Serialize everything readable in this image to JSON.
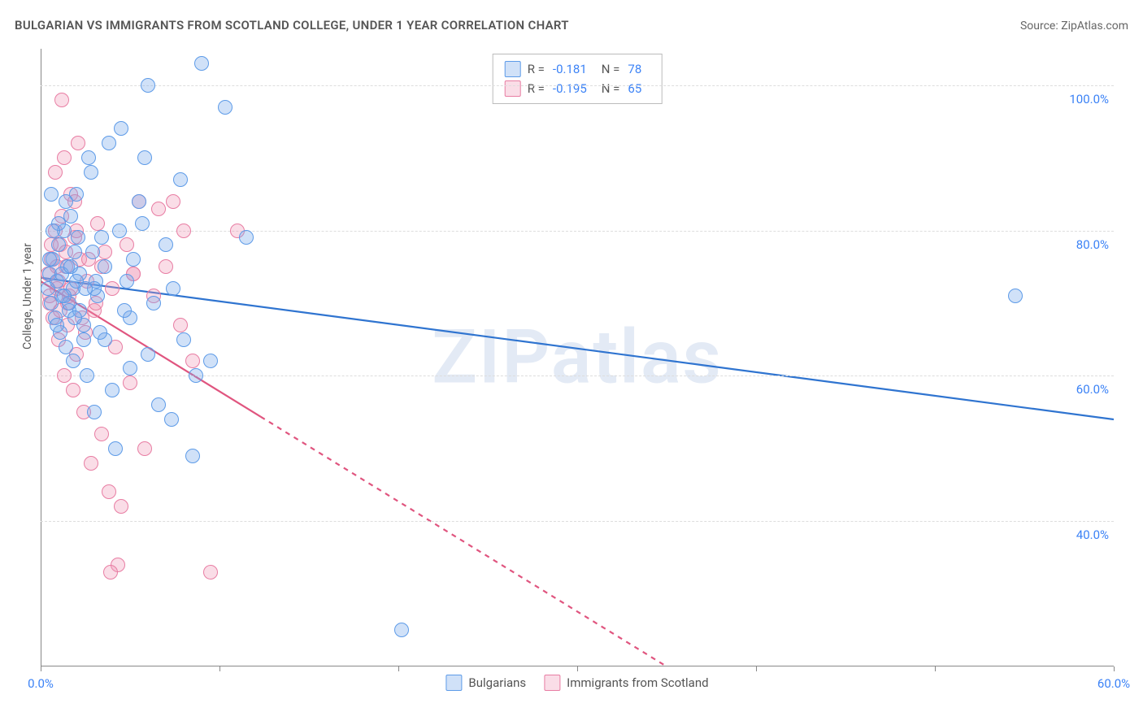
{
  "header": {
    "title": "BULGARIAN VS IMMIGRANTS FROM SCOTLAND COLLEGE, UNDER 1 YEAR CORRELATION CHART",
    "source_prefix": "Source: ",
    "source_name": "ZipAtlas.com"
  },
  "watermark": "ZIPatlas",
  "ylabel": "College, Under 1 year",
  "chart": {
    "type": "scatter",
    "xlim": [
      0,
      60.0
    ],
    "ylim": [
      20.0,
      105.0
    ],
    "xticks": [
      0.0,
      10.0,
      20.0,
      30.0,
      40.0,
      50.0,
      60.0
    ],
    "xtick_labels_shown": {
      "0": "0.0%",
      "60": "60.0%"
    },
    "yticks": [
      40.0,
      60.0,
      80.0,
      100.0
    ],
    "ytick_labels": {
      "40": "40.0%",
      "60": "60.0%",
      "80": "80.0%",
      "100": "100.0%"
    },
    "grid_color": "#dddddd",
    "axis_color": "#888888",
    "background": "#ffffff",
    "label_color": "#3b82f6",
    "text_color": "#555555",
    "marker_radius": 8,
    "marker_stroke_width": 1.5,
    "line_width": 2.2
  },
  "series": {
    "blue": {
      "name": "Bulgarians",
      "fill": "rgba(120,170,235,0.35)",
      "stroke": "#5d9be8",
      "line_stroke": "#2f74d0",
      "r_label": "R =",
      "r_value": "-0.181",
      "n_label": "N =",
      "n_value": "78",
      "trend": {
        "x1": 0,
        "y1": 73.5,
        "x2": 60,
        "y2": 54.0,
        "solid_until_x": 60
      },
      "points": [
        [
          0.4,
          72
        ],
        [
          0.5,
          74
        ],
        [
          0.6,
          70
        ],
        [
          0.7,
          76
        ],
        [
          0.8,
          68
        ],
        [
          0.9,
          73
        ],
        [
          1.0,
          78
        ],
        [
          1.1,
          66
        ],
        [
          1.2,
          71
        ],
        [
          1.3,
          80
        ],
        [
          1.4,
          64
        ],
        [
          1.5,
          75
        ],
        [
          1.6,
          69
        ],
        [
          1.7,
          82
        ],
        [
          1.8,
          62
        ],
        [
          1.9,
          77
        ],
        [
          2.0,
          85
        ],
        [
          2.2,
          74
        ],
        [
          2.4,
          67
        ],
        [
          2.6,
          60
        ],
        [
          2.8,
          88
        ],
        [
          3.0,
          55
        ],
        [
          3.2,
          71
        ],
        [
          3.4,
          79
        ],
        [
          3.6,
          65
        ],
        [
          3.8,
          92
        ],
        [
          4.0,
          58
        ],
        [
          4.2,
          50
        ],
        [
          4.5,
          94
        ],
        [
          4.8,
          73
        ],
        [
          5.0,
          68
        ],
        [
          5.2,
          76
        ],
        [
          5.5,
          84
        ],
        [
          5.8,
          90
        ],
        [
          6.0,
          63
        ],
        [
          6.3,
          70
        ],
        [
          6.6,
          56
        ],
        [
          7.0,
          78
        ],
        [
          7.4,
          72
        ],
        [
          7.8,
          87
        ],
        [
          8.0,
          65
        ],
        [
          8.5,
          49
        ],
        [
          9.0,
          103
        ],
        [
          9.5,
          62
        ],
        [
          10.3,
          97
        ],
        [
          6.0,
          100
        ],
        [
          5.7,
          81
        ],
        [
          11.5,
          79
        ],
        [
          8.7,
          60
        ],
        [
          7.3,
          54
        ],
        [
          3.1,
          73
        ],
        [
          2.7,
          90
        ],
        [
          1.4,
          84
        ],
        [
          1.0,
          81
        ],
        [
          0.6,
          85
        ],
        [
          2.2,
          69
        ],
        [
          4.4,
          80
        ],
        [
          5.0,
          61
        ],
        [
          3.6,
          75
        ],
        [
          1.8,
          72
        ],
        [
          0.9,
          67
        ],
        [
          2.0,
          73
        ],
        [
          2.9,
          77
        ],
        [
          20.2,
          25
        ],
        [
          54.5,
          71
        ],
        [
          1.2,
          74
        ],
        [
          1.6,
          70
        ],
        [
          2.4,
          65
        ],
        [
          3.0,
          72
        ],
        [
          0.7,
          80
        ],
        [
          1.9,
          68
        ],
        [
          0.5,
          76
        ],
        [
          1.3,
          71
        ],
        [
          2.1,
          79
        ],
        [
          4.7,
          69
        ],
        [
          3.3,
          66
        ],
        [
          1.7,
          75
        ],
        [
          2.5,
          72
        ]
      ]
    },
    "pink": {
      "name": "Immigrants from Scotland",
      "fill": "rgba(240,150,180,0.32)",
      "stroke": "#e87da3",
      "line_stroke": "#e0557f",
      "r_label": "R =",
      "r_value": "-0.195",
      "n_label": "N =",
      "n_value": "65",
      "trend": {
        "x1": 0,
        "y1": 73.0,
        "x2": 35,
        "y2": 20.0,
        "solid_until_x": 12.3
      },
      "points": [
        [
          0.4,
          74
        ],
        [
          0.5,
          70
        ],
        [
          0.6,
          76
        ],
        [
          0.7,
          68
        ],
        [
          0.8,
          80
        ],
        [
          0.9,
          72
        ],
        [
          1.0,
          65
        ],
        [
          1.1,
          78
        ],
        [
          1.2,
          82
        ],
        [
          1.3,
          60
        ],
        [
          1.4,
          75
        ],
        [
          1.5,
          67
        ],
        [
          1.6,
          71
        ],
        [
          1.7,
          85
        ],
        [
          1.8,
          58
        ],
        [
          1.9,
          79
        ],
        [
          2.0,
          63
        ],
        [
          2.2,
          76
        ],
        [
          2.4,
          55
        ],
        [
          2.6,
          73
        ],
        [
          2.8,
          48
        ],
        [
          3.0,
          69
        ],
        [
          3.2,
          81
        ],
        [
          3.4,
          52
        ],
        [
          3.6,
          77
        ],
        [
          3.8,
          44
        ],
        [
          4.0,
          72
        ],
        [
          4.2,
          64
        ],
        [
          4.5,
          42
        ],
        [
          4.8,
          78
        ],
        [
          5.0,
          59
        ],
        [
          5.2,
          74
        ],
        [
          5.5,
          84
        ],
        [
          5.8,
          50
        ],
        [
          1.2,
          98
        ],
        [
          6.3,
          71
        ],
        [
          6.6,
          83
        ],
        [
          7.0,
          75
        ],
        [
          7.4,
          84
        ],
        [
          7.8,
          67
        ],
        [
          8.0,
          80
        ],
        [
          8.5,
          62
        ],
        [
          9.5,
          33
        ],
        [
          4.3,
          34
        ],
        [
          3.9,
          33
        ],
        [
          2.7,
          76
        ],
        [
          3.1,
          70
        ],
        [
          1.3,
          90
        ],
        [
          2.1,
          92
        ],
        [
          0.8,
          88
        ],
        [
          1.9,
          84
        ],
        [
          1.0,
          73
        ],
        [
          0.6,
          78
        ],
        [
          1.5,
          70
        ],
        [
          2.3,
          68
        ],
        [
          0.9,
          75
        ],
        [
          1.7,
          72
        ],
        [
          2.5,
          66
        ],
        [
          0.5,
          71
        ],
        [
          1.1,
          69
        ],
        [
          11.0,
          80
        ],
        [
          5.2,
          74
        ],
        [
          3.4,
          75
        ],
        [
          2.0,
          80
        ],
        [
          1.4,
          77
        ]
      ]
    }
  },
  "legend_bottom": {
    "items": [
      {
        "key": "blue",
        "label": "Bulgarians"
      },
      {
        "key": "pink",
        "label": "Immigrants from Scotland"
      }
    ]
  }
}
